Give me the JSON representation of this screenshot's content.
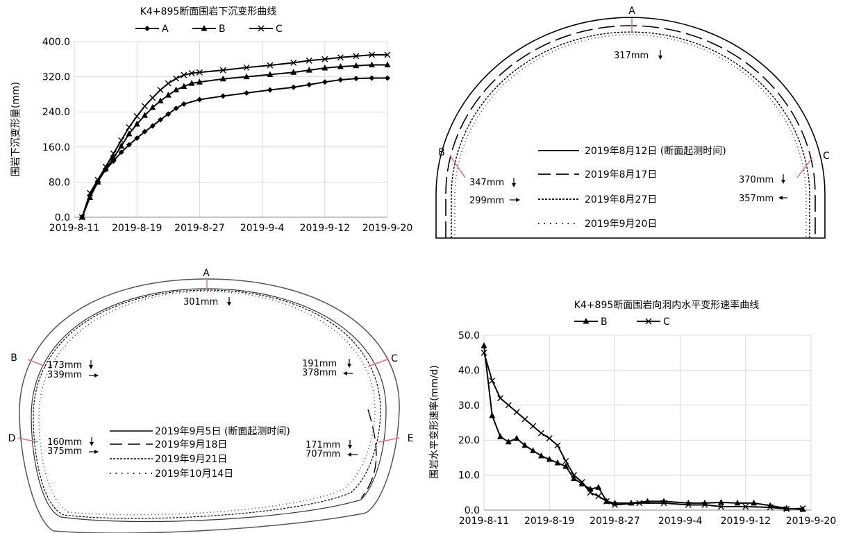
{
  "chart_data": [
    {
      "type": "line",
      "title": "K4+895断面围岩下沉变形曲线",
      "ylabel": "围岩下沉变形量(mm)",
      "xlabel": "",
      "ylim": [
        0,
        400
      ],
      "yticks": [
        "0.0",
        "80.0",
        "160.0",
        "240.0",
        "320.0",
        "400.0"
      ],
      "xticks": [
        "2019-8-11",
        "2019-8-19",
        "2019-8-27",
        "2019-9-4",
        "2019-9-12",
        "2019-9-20"
      ],
      "grid": true,
      "legend_position": "top",
      "series": [
        {
          "name": "A",
          "marker": "diamond",
          "x": [
            "2019-8-12",
            "2019-8-13",
            "2019-8-14",
            "2019-8-15",
            "2019-8-16",
            "2019-8-17",
            "2019-8-18",
            "2019-8-19",
            "2019-8-20",
            "2019-8-21",
            "2019-8-22",
            "2019-8-23",
            "2019-8-24",
            "2019-8-25",
            "2019-8-27",
            "2019-8-30",
            "2019-9-2",
            "2019-9-5",
            "2019-9-8",
            "2019-9-10",
            "2019-9-12",
            "2019-9-14",
            "2019-9-16",
            "2019-9-18",
            "2019-9-20"
          ],
          "values": [
            0,
            50,
            82,
            108,
            128,
            148,
            165,
            180,
            195,
            208,
            222,
            235,
            248,
            258,
            268,
            276,
            283,
            290,
            296,
            302,
            308,
            313,
            316,
            317,
            317
          ]
        },
        {
          "name": "B",
          "marker": "triangle",
          "x": [
            "2019-8-12",
            "2019-8-13",
            "2019-8-14",
            "2019-8-15",
            "2019-8-16",
            "2019-8-17",
            "2019-8-18",
            "2019-8-19",
            "2019-8-20",
            "2019-8-21",
            "2019-8-22",
            "2019-8-23",
            "2019-8-24",
            "2019-8-25",
            "2019-8-26",
            "2019-8-27",
            "2019-8-30",
            "2019-9-2",
            "2019-9-5",
            "2019-9-8",
            "2019-9-10",
            "2019-9-12",
            "2019-9-14",
            "2019-9-16",
            "2019-9-18",
            "2019-9-20"
          ],
          "values": [
            0,
            45,
            80,
            110,
            135,
            162,
            190,
            212,
            232,
            250,
            265,
            278,
            290,
            298,
            305,
            308,
            315,
            320,
            325,
            330,
            335,
            340,
            343,
            345,
            347,
            347
          ]
        },
        {
          "name": "C",
          "marker": "x",
          "x": [
            "2019-8-12",
            "2019-8-13",
            "2019-8-14",
            "2019-8-15",
            "2019-8-16",
            "2019-8-17",
            "2019-8-18",
            "2019-8-19",
            "2019-8-20",
            "2019-8-21",
            "2019-8-22",
            "2019-8-23",
            "2019-8-24",
            "2019-8-25",
            "2019-8-26",
            "2019-8-27",
            "2019-8-30",
            "2019-9-2",
            "2019-9-5",
            "2019-9-8",
            "2019-9-10",
            "2019-9-12",
            "2019-9-14",
            "2019-9-16",
            "2019-9-18",
            "2019-9-20"
          ],
          "values": [
            0,
            55,
            85,
            115,
            145,
            175,
            205,
            230,
            253,
            272,
            290,
            305,
            316,
            324,
            328,
            330,
            335,
            341,
            346,
            352,
            357,
            360,
            364,
            367,
            370,
            370
          ]
        }
      ]
    },
    {
      "type": "line",
      "title": "K4+895断面围岩向洞内水平变形速率曲线",
      "ylabel": "围岩水平变形速率(mm/d)",
      "xlabel": "",
      "ylim": [
        0,
        50
      ],
      "yticks": [
        "0.0",
        "10.0",
        "20.0",
        "30.0",
        "40.0",
        "50.0"
      ],
      "xticks": [
        "2019-8-11",
        "2019-8-19",
        "2019-8-27",
        "2019-9-4",
        "2019-9-12",
        "2019-9-20"
      ],
      "grid": true,
      "legend_position": "top",
      "series": [
        {
          "name": "B",
          "marker": "triangle",
          "x": [
            "2019-8-11",
            "2019-8-12",
            "2019-8-13",
            "2019-8-14",
            "2019-8-15",
            "2019-8-16",
            "2019-8-17",
            "2019-8-18",
            "2019-8-19",
            "2019-8-20",
            "2019-8-21",
            "2019-8-22",
            "2019-8-23",
            "2019-8-24",
            "2019-8-25",
            "2019-8-26",
            "2019-8-27",
            "2019-8-29",
            "2019-8-31",
            "2019-9-2",
            "2019-9-5",
            "2019-9-7",
            "2019-9-9",
            "2019-9-11",
            "2019-9-13",
            "2019-9-15",
            "2019-9-17",
            "2019-9-19"
          ],
          "values": [
            47,
            27,
            21,
            19.5,
            20.5,
            18.5,
            17,
            15.5,
            14.5,
            13.5,
            12.5,
            9,
            7.5,
            6,
            6.5,
            2.5,
            2,
            2,
            2.5,
            2.5,
            2,
            2,
            2.2,
            2,
            2,
            1.3,
            0.5,
            0.2
          ]
        },
        {
          "name": "C",
          "marker": "x",
          "x": [
            "2019-8-11",
            "2019-8-12",
            "2019-8-13",
            "2019-8-14",
            "2019-8-15",
            "2019-8-16",
            "2019-8-17",
            "2019-8-18",
            "2019-8-19",
            "2019-8-20",
            "2019-8-21",
            "2019-8-22",
            "2019-8-23",
            "2019-8-24",
            "2019-8-25",
            "2019-8-26",
            "2019-8-27",
            "2019-8-30",
            "2019-9-2",
            "2019-9-5",
            "2019-9-7",
            "2019-9-9",
            "2019-9-12",
            "2019-9-15",
            "2019-9-17",
            "2019-9-19"
          ],
          "values": [
            45,
            37,
            32,
            30,
            28,
            26,
            24,
            22,
            20.5,
            18.5,
            14,
            10,
            8,
            5,
            4,
            2.5,
            1.5,
            2,
            2,
            1.5,
            1.5,
            1,
            1,
            0.8,
            0.3,
            0.5
          ]
        }
      ]
    }
  ],
  "diagrams": {
    "arch": {
      "points": {
        "A": "A",
        "B": "B",
        "C": "C"
      },
      "annotations": {
        "A_settle": "317mm",
        "B_settle": "347mm",
        "B_horiz": "299mm",
        "C_settle": "370mm",
        "C_horiz": "357mm"
      },
      "legend": [
        {
          "style": "solid",
          "label": "2019年8月12日  (断面起测时间)"
        },
        {
          "style": "long-dash",
          "label": "2019年8月17日"
        },
        {
          "style": "short-dash",
          "label": "2019年8月27日"
        },
        {
          "style": "dot",
          "label": "2019年9月20日"
        }
      ]
    },
    "horseshoe": {
      "points": {
        "A": "A",
        "B": "B",
        "C": "C",
        "D": "D",
        "E": "E"
      },
      "annotations": {
        "A_settle": "301mm",
        "B_settle": "173mm",
        "B_horiz": "339mm",
        "C_settle": "191mm",
        "C_horiz": "378mm",
        "D_settle": "160mm",
        "D_horiz": "375mm",
        "E_settle": "171mm",
        "E_horiz": "707mm"
      },
      "legend": [
        {
          "style": "solid",
          "label": "2019年9月5日  (断面起测时间)"
        },
        {
          "style": "long-dash",
          "label": "2019年9月18日"
        },
        {
          "style": "short-dash",
          "label": "2019年9月21日"
        },
        {
          "style": "dot",
          "label": "2019年10月14日"
        }
      ]
    }
  }
}
